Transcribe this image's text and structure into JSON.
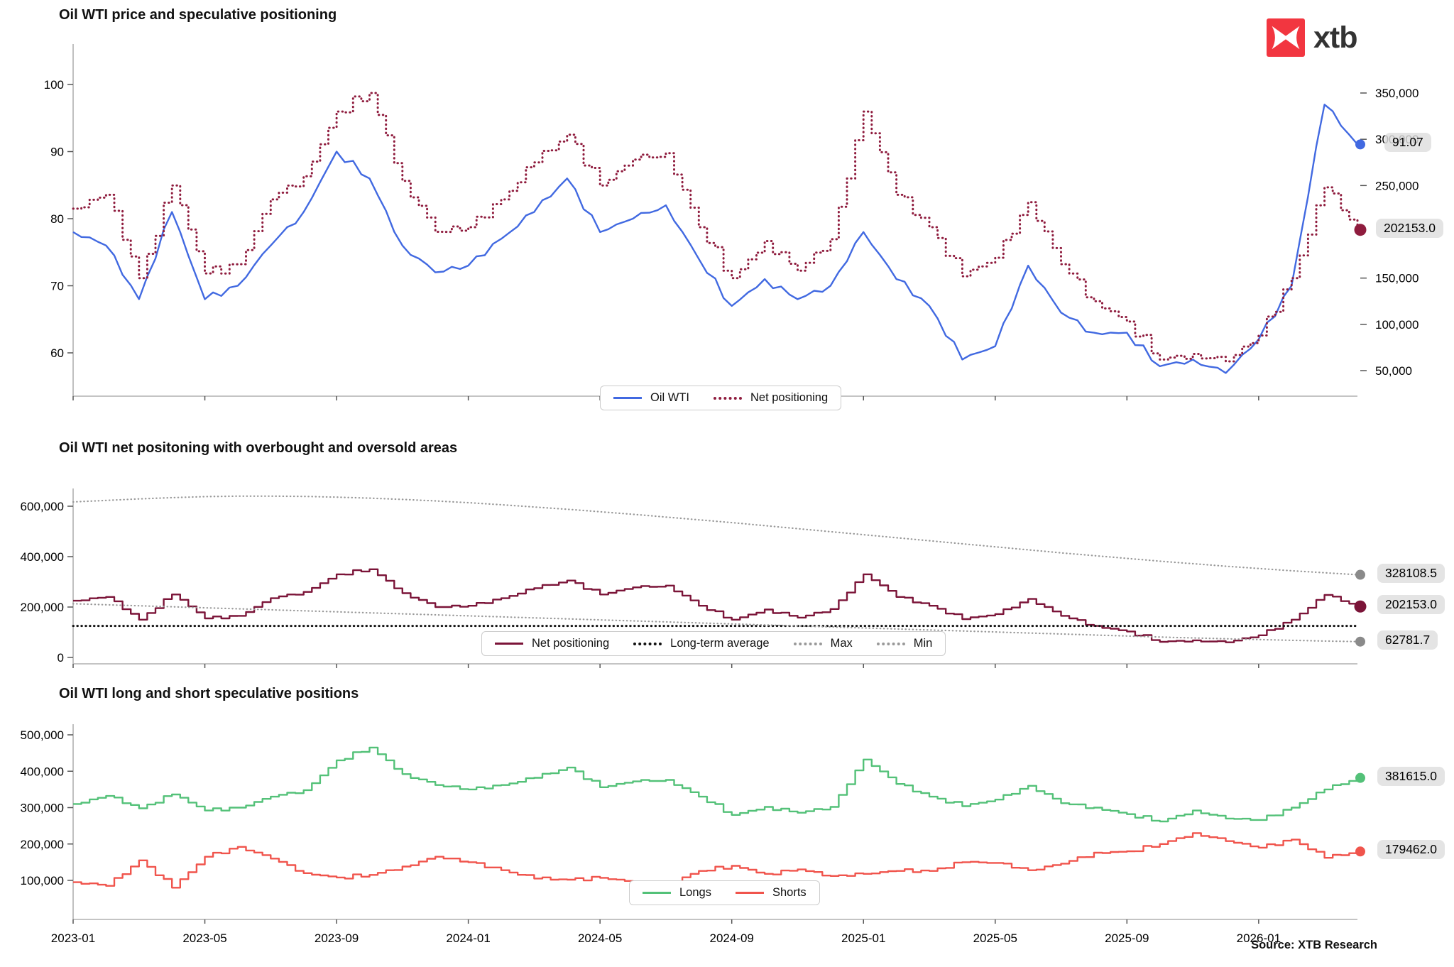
{
  "logo": {
    "brand": "xtb"
  },
  "source_note": "Source: XTB Research",
  "categories": [
    "2023-01",
    "2023-02",
    "2023-03",
    "2023-04",
    "2023-05",
    "2023-06",
    "2023-07",
    "2023-08",
    "2023-09",
    "2023-10",
    "2023-11",
    "2023-12",
    "2024-01",
    "2024-02",
    "2024-03",
    "2024-04",
    "2024-05",
    "2024-06",
    "2024-07",
    "2024-08",
    "2024-09",
    "2024-10",
    "2024-11",
    "2024-12",
    "2025-01",
    "2025-02",
    "2025-03",
    "2025-04",
    "2025-05",
    "2025-06",
    "2025-07",
    "2025-08",
    "2025-09",
    "2025-10",
    "2025-11",
    "2025-12",
    "2026-01",
    "2026-02",
    "2026-03",
    "2026-04"
  ],
  "xtick_labels": [
    "2023-01",
    "2023-05",
    "2023-09",
    "2024-01",
    "2024-05",
    "2024-09",
    "2025-01",
    "2025-05",
    "2025-09",
    "2026-01"
  ],
  "chart_data": [
    {
      "type": "line",
      "title": "Oil WTI price and speculative positioning",
      "left_axis": {
        "ticks": [
          "100",
          "90",
          "80",
          "70",
          "60"
        ],
        "tick_values": [
          100,
          90,
          80,
          70,
          60
        ],
        "range": [
          55,
          102
        ]
      },
      "right_axis": {
        "ticks": [
          "350,000",
          "300,000",
          "250,000",
          "150,000",
          "100,000",
          "50,000"
        ],
        "tick_values": [
          350000,
          300000,
          250000,
          150000,
          100000,
          50000
        ],
        "range": [
          30000,
          370000
        ]
      },
      "series": [
        {
          "name": "Oil WTI",
          "color": "#4169e1",
          "style": "solid",
          "axis": "left",
          "values": [
            78,
            76,
            68,
            81,
            68,
            70,
            76,
            81,
            90,
            86,
            76,
            72,
            73,
            77,
            81,
            86,
            78,
            80,
            82,
            74,
            67,
            71,
            68,
            70,
            78,
            71,
            67,
            59,
            61,
            73,
            66,
            63,
            63,
            58,
            59,
            57,
            62,
            70,
            97,
            91.07
          ]
        },
        {
          "name": "Net positioning",
          "color": "#8f1c3e",
          "style": "dotted",
          "axis": "right",
          "step": true,
          "values": [
            225000,
            240000,
            150000,
            250000,
            155000,
            165000,
            235000,
            260000,
            330000,
            350000,
            255000,
            200000,
            205000,
            235000,
            275000,
            305000,
            250000,
            278000,
            285000,
            205000,
            150000,
            190000,
            158000,
            192000,
            330000,
            240000,
            205000,
            152000,
            172000,
            232000,
            165000,
            125000,
            103000,
            62000,
            68000,
            60000,
            88000,
            150000,
            248000,
            202153
          ]
        }
      ],
      "legend": [
        {
          "label": "Oil WTI",
          "color": "#4169e1",
          "style": "solid"
        },
        {
          "label": "Net positioning",
          "color": "#8f1c3e",
          "style": "dotted"
        }
      ],
      "annotations": [
        {
          "text": "91.07",
          "value": 91.07,
          "axis": "left",
          "color": "#4169e1",
          "dot_r": 7
        },
        {
          "text": "202153.0",
          "value": 202153,
          "axis": "right",
          "color": "#8f1c3e",
          "dot_r": 8.5
        }
      ]
    },
    {
      "type": "line",
      "title": "Oil WTI net positoning with overbought and oversold areas",
      "left_axis": {
        "ticks": [
          "600,000",
          "400,000",
          "200,000",
          "0"
        ],
        "tick_values": [
          600000,
          400000,
          200000,
          0
        ],
        "range": [
          0,
          660000
        ]
      },
      "series": [
        {
          "name": "Net positioning",
          "color": "#7b1438",
          "style": "solid",
          "axis": "left",
          "step": true,
          "values": [
            225000,
            240000,
            150000,
            250000,
            155000,
            165000,
            235000,
            260000,
            330000,
            350000,
            255000,
            200000,
            205000,
            235000,
            275000,
            305000,
            250000,
            278000,
            285000,
            205000,
            150000,
            190000,
            158000,
            192000,
            330000,
            240000,
            205000,
            152000,
            172000,
            232000,
            165000,
            125000,
            103000,
            62000,
            68000,
            60000,
            88000,
            150000,
            248000,
            202153
          ]
        },
        {
          "name": "Long-term average",
          "color": "#111111",
          "style": "dotted",
          "axis": "left",
          "constant": 125000
        },
        {
          "name": "Max",
          "color": "#999999",
          "style": "dotted",
          "axis": "left",
          "values": [
            617000,
            623000,
            629000,
            634000,
            638000,
            640000,
            640000,
            639000,
            636000,
            632000,
            627000,
            621000,
            614000,
            606000,
            597000,
            588000,
            578000,
            568000,
            557000,
            546000,
            535000,
            523000,
            511000,
            499000,
            487000,
            475000,
            463000,
            451000,
            439000,
            427000,
            415000,
            404000,
            393000,
            382000,
            372000,
            362000,
            353000,
            344000,
            336000,
            328108.5
          ]
        },
        {
          "name": "Min",
          "color": "#999999",
          "style": "dotted",
          "axis": "left",
          "values": [
            213000,
            209000,
            205000,
            201000,
            197000,
            193000,
            189000,
            185000,
            181000,
            177000,
            173000,
            169000,
            165000,
            161000,
            157000,
            153000,
            149000,
            145000,
            141000,
            137000,
            133000,
            129000,
            125000,
            121000,
            117000,
            113000,
            109000,
            105000,
            101000,
            97000,
            93000,
            89000,
            85000,
            81000,
            77500,
            74000,
            71000,
            68000,
            65000,
            62781.7
          ]
        }
      ],
      "legend": [
        {
          "label": "Net positioning",
          "color": "#7b1438",
          "style": "solid"
        },
        {
          "label": "Long-term average",
          "color": "#111111",
          "style": "dotted"
        },
        {
          "label": "Max",
          "color": "#999999",
          "style": "dotted"
        },
        {
          "label": "Min",
          "color": "#999999",
          "style": "dotted"
        }
      ],
      "annotations": [
        {
          "text": "328108.5",
          "value": 328108.5,
          "axis": "left",
          "color": "#8a8a8a",
          "dot_r": 7
        },
        {
          "text": "202153.0",
          "value": 202153,
          "axis": "left",
          "color": "#7b1438",
          "dot_r": 8.5
        },
        {
          "text": "62781.7",
          "value": 62781.7,
          "axis": "left",
          "color": "#8a8a8a",
          "dot_r": 7
        }
      ]
    },
    {
      "type": "line",
      "title": "Oil WTI long and short speculative positions",
      "left_axis": {
        "ticks": [
          "500,000",
          "400,000",
          "300,000",
          "200,000",
          "100,000"
        ],
        "tick_values": [
          500000,
          400000,
          300000,
          200000,
          100000
        ],
        "range": [
          50000,
          520000
        ]
      },
      "series": [
        {
          "name": "Longs",
          "color": "#53c178",
          "style": "solid",
          "axis": "left",
          "step": true,
          "values": [
            310000,
            332000,
            298000,
            336000,
            292000,
            300000,
            330000,
            348000,
            430000,
            465000,
            392000,
            362000,
            350000,
            362000,
            382000,
            410000,
            356000,
            372000,
            376000,
            330000,
            280000,
            302000,
            286000,
            302000,
            432000,
            365000,
            330000,
            304000,
            322000,
            360000,
            312000,
            300000,
            282000,
            262000,
            292000,
            270000,
            266000,
            300000,
            350000,
            381615
          ]
        },
        {
          "name": "Shorts",
          "color": "#f0544c",
          "style": "solid",
          "axis": "left",
          "step": true,
          "values": [
            95000,
            85000,
            155000,
            80000,
            165000,
            192000,
            160000,
            120000,
            108000,
            115000,
            138000,
            165000,
            150000,
            128000,
            105000,
            102000,
            107000,
            95000,
            90000,
            126000,
            140000,
            118000,
            130000,
            112000,
            118000,
            126000,
            126000,
            150000,
            148000,
            128000,
            146000,
            176000,
            180000,
            200000,
            230000,
            208000,
            190000,
            212000,
            162000,
            179462
          ]
        }
      ],
      "legend": [
        {
          "label": "Longs",
          "color": "#53c178",
          "style": "solid"
        },
        {
          "label": "Shorts",
          "color": "#f0544c",
          "style": "solid"
        }
      ],
      "annotations": [
        {
          "text": "381615.0",
          "value": 381615,
          "axis": "left",
          "color": "#53c178",
          "dot_r": 7
        },
        {
          "text": "179462.0",
          "value": 179462,
          "axis": "left",
          "color": "#f0544c",
          "dot_r": 7
        }
      ]
    }
  ]
}
